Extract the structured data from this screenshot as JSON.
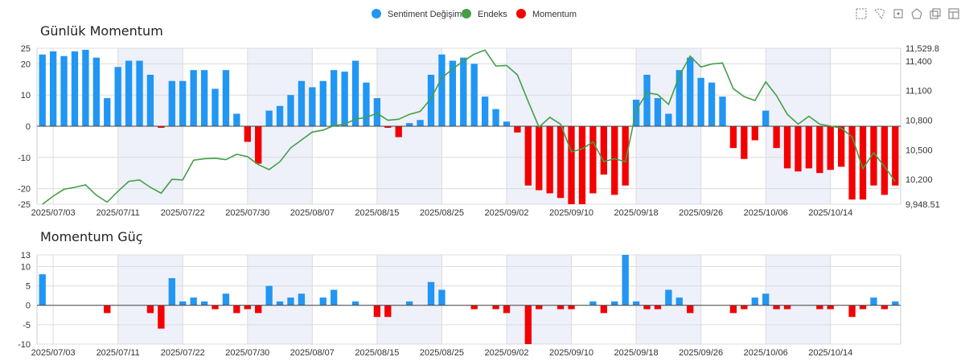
{
  "legend": [
    {
      "label": "Sentiment Değişimi",
      "color": "#2196f3"
    },
    {
      "label": "Endeks",
      "color": "#43a047"
    },
    {
      "label": "Momentum",
      "color": "#f40000"
    }
  ],
  "toolbox": [
    "zoom-select-icon",
    "lasso-select-icon",
    "rect-select-icon",
    "polygon-select-icon",
    "fullscreen-icon",
    "data-view-icon"
  ],
  "colors": {
    "positive": "#2196f3",
    "negative": "#f40000",
    "line": "#43a047",
    "band": "#eef0fa",
    "grid": "#dcdcdc"
  },
  "chart_data": [
    {
      "type": "bar",
      "title": "Günlük Momentum",
      "x_ticks": [
        "2025/07/03",
        "2025/07/11",
        "2025/07/22",
        "2025/07/30",
        "2025/08/07",
        "2025/08/15",
        "2025/08/25",
        "2025/09/02",
        "2025/09/10",
        "2025/09/18",
        "2025/09/26",
        "2025/10/06",
        "2025/10/14"
      ],
      "y_left_ticks": [
        "25",
        "20",
        "10",
        "0",
        "-10",
        "-20",
        "-25"
      ],
      "y_left_range": [
        -25,
        25
      ],
      "y_right_ticks": [
        "11,529.8",
        "11,400",
        "11,100",
        "10,800",
        "10,500",
        "10,200",
        "9,948.51"
      ],
      "y_right_range": [
        9948.51,
        11529.8
      ],
      "series": [
        {
          "name": "Momentum",
          "kind": "bar",
          "values": [
            23,
            24,
            22.5,
            24,
            24.5,
            22,
            9,
            19,
            21,
            21,
            16.5,
            -0.5,
            14.5,
            14.5,
            18,
            18,
            12,
            18,
            4,
            -5,
            -12,
            5,
            6.5,
            10,
            14.5,
            12.5,
            14.5,
            18,
            17.5,
            21,
            14,
            9,
            -0.5,
            -3.5,
            1,
            2,
            16.5,
            23,
            21,
            22,
            20,
            9.5,
            5.5,
            1.5,
            -2,
            -19,
            -20.5,
            -21.5,
            -23,
            -25,
            -25,
            -21.5,
            -15.5,
            -22,
            -19,
            8.5,
            16.5,
            9,
            4,
            18,
            22,
            15.5,
            14,
            9.5,
            -7,
            -10.5,
            -4.5,
            5,
            -7,
            -13.5,
            -14.5,
            -13.5,
            -15,
            -14,
            -13,
            -23.5,
            -23.5,
            -19,
            -22,
            -19
          ]
        },
        {
          "name": "Endeks",
          "kind": "line",
          "values": [
            9948,
            10030,
            10100,
            10120,
            10145,
            10040,
            9970,
            10080,
            10180,
            10195,
            10120,
            10060,
            10200,
            10195,
            10395,
            10410,
            10415,
            10400,
            10455,
            10430,
            10350,
            10300,
            10380,
            10520,
            10600,
            10680,
            10700,
            10745,
            10760,
            10810,
            10830,
            10870,
            10800,
            10810,
            10860,
            10890,
            11020,
            11230,
            11320,
            11400,
            11470,
            11510,
            11350,
            11355,
            11260,
            10990,
            10730,
            10830,
            10760,
            10480,
            10510,
            10580,
            10380,
            10410,
            10380,
            10900,
            11080,
            11060,
            10960,
            11250,
            11450,
            11340,
            11370,
            11380,
            11120,
            11040,
            11000,
            11190,
            11050,
            10860,
            10760,
            10840,
            10760,
            10740,
            10720,
            10630,
            10310,
            10470,
            10330,
            10180
          ]
        }
      ]
    },
    {
      "type": "bar",
      "title": "Momentum Güç",
      "x_ticks": [
        "2025/07/03",
        "2025/07/11",
        "2025/07/22",
        "2025/07/30",
        "2025/08/07",
        "2025/08/15",
        "2025/08/25",
        "2025/09/02",
        "2025/09/10",
        "2025/09/18",
        "2025/09/26",
        "2025/10/06",
        "2025/10/14"
      ],
      "y_ticks": [
        "13",
        "10",
        "5",
        "0",
        "-5",
        "-10"
      ],
      "y_range": [
        -10,
        13
      ],
      "series": [
        {
          "name": "Momentum Güç",
          "values": [
            8,
            0,
            0,
            0,
            0,
            0,
            -2,
            0,
            0,
            0,
            -2,
            -6,
            7,
            1,
            2,
            1,
            -1,
            3,
            -2,
            -1,
            -2,
            5,
            1,
            2,
            3,
            0,
            2,
            4,
            0,
            1,
            0,
            -3,
            -3,
            0,
            1,
            0,
            6,
            4,
            0,
            0,
            -1,
            0,
            -1,
            -2,
            0,
            -10,
            -1,
            0,
            -1,
            -1,
            0,
            1,
            -2,
            1,
            13,
            1,
            -1,
            -1,
            4,
            2,
            -2,
            0,
            0,
            0,
            -2,
            -1,
            2,
            3,
            -1,
            -1,
            0,
            0,
            -1,
            -1,
            0,
            -3,
            -1,
            2,
            -1,
            1
          ]
        }
      ]
    }
  ]
}
